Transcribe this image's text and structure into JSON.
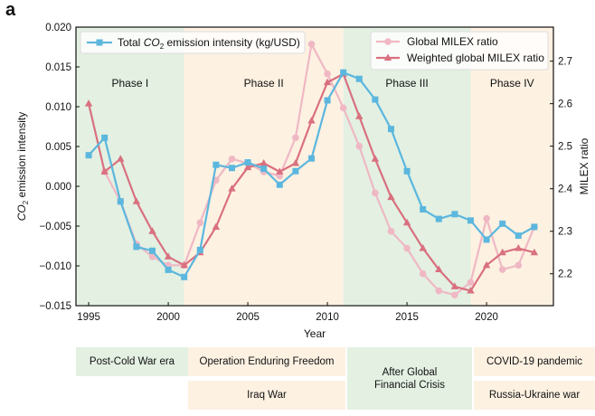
{
  "panel_label": "a",
  "chart_data": {
    "type": "line",
    "x": [
      1995,
      1996,
      1997,
      1998,
      1999,
      2000,
      2001,
      2002,
      2003,
      2004,
      2005,
      2006,
      2007,
      2008,
      2009,
      2010,
      2011,
      2012,
      2013,
      2014,
      2015,
      2016,
      2017,
      2018,
      2019,
      2020,
      2021,
      2022,
      2023
    ],
    "xlabel": "Year",
    "xlim": [
      1994.2,
      2024.2
    ],
    "xticks": [
      1995,
      2000,
      2005,
      2010,
      2015,
      2020
    ],
    "left_axis": {
      "label_prefix": "CO",
      "label_sub": "2",
      "label_suffix": " emission intensity",
      "ylim": [
        -0.015,
        0.02
      ],
      "ticks": [
        -0.015,
        -0.01,
        -0.005,
        0.0,
        0.005,
        0.01,
        0.015,
        0.02
      ],
      "tick_labels": [
        "−0.015",
        "−0.010",
        "−0.005",
        "0.000",
        "0.005",
        "0.010",
        "0.015",
        "0.020"
      ]
    },
    "right_axis": {
      "label": "MILEX ratio",
      "ylim": [
        2.125,
        2.78
      ],
      "ticks": [
        2.2,
        2.3,
        2.4,
        2.5,
        2.6,
        2.7
      ],
      "tick_labels": [
        "2.2",
        "2.3",
        "2.4",
        "2.5",
        "2.6",
        "2.7"
      ]
    },
    "series": [
      {
        "name": "Total CO2 emission intensity (kg/USD)",
        "legend_prefix": "Total ",
        "legend_italic": "CO",
        "legend_sub": "2",
        "legend_suffix": " emission intensity (kg/USD)",
        "axis": "left",
        "marker": "square",
        "color": "#5bb7de",
        "start_year": 1995,
        "values": [
          0.0039,
          0.0061,
          -0.0019,
          -0.0076,
          -0.0081,
          -0.0105,
          -0.0114,
          -0.008,
          0.0027,
          0.0023,
          0.003,
          0.0022,
          0.0002,
          0.0019,
          0.0035,
          0.0108,
          0.0143,
          0.0135,
          0.0109,
          0.0072,
          0.0019,
          -0.0029,
          -0.0041,
          -0.0035,
          -0.0043,
          -0.0067,
          -0.0047,
          -0.0062,
          -0.0051
        ]
      },
      {
        "name": "Global MILEX ratio",
        "axis": "right",
        "marker": "circle",
        "color": "#efb8c4",
        "start_year": 1996,
        "values": [
          2.44,
          2.37,
          2.27,
          2.24,
          2.22,
          2.22,
          2.32,
          2.42,
          2.47,
          2.46,
          2.44,
          2.43,
          2.52,
          2.74,
          2.67,
          2.59,
          2.5,
          2.39,
          2.3,
          2.26,
          2.2,
          2.16,
          2.15,
          2.18,
          2.33,
          2.21,
          2.22,
          2.31
        ]
      },
      {
        "name": "Weighted global MILEX ratio",
        "axis": "right",
        "marker": "triangle",
        "color": "#d9707f",
        "start_year": 1995,
        "values": [
          2.6,
          2.44,
          2.47,
          2.37,
          2.3,
          2.24,
          2.22,
          2.25,
          2.31,
          2.4,
          2.45,
          2.46,
          2.44,
          2.46,
          2.56,
          2.65,
          2.67,
          2.57,
          2.47,
          2.38,
          2.32,
          2.26,
          2.21,
          2.17,
          2.16,
          2.22,
          2.25,
          2.26,
          2.25
        ]
      }
    ],
    "phases": [
      {
        "label": "Phase I",
        "start": 1994.2,
        "end": 2001,
        "color": "#e3f0e2"
      },
      {
        "label": "Phase II",
        "start": 2001,
        "end": 2011,
        "color": "#fdf1e2"
      },
      {
        "label": "Phase III",
        "start": 2011,
        "end": 2019,
        "color": "#e3f0e2"
      },
      {
        "label": "Phase IV",
        "start": 2019,
        "end": 2024.2,
        "color": "#fdf1e2"
      }
    ],
    "legend_left_placement": "top-left",
    "legend_right_placement": "top-right"
  },
  "events": [
    {
      "label": "Post-Cold War era",
      "row": "top",
      "phase": 0,
      "color": "green"
    },
    {
      "label": "Operation Enduring Freedom",
      "row": "top",
      "phase": 1,
      "color": "orange"
    },
    {
      "label": "Iraq War",
      "row": "bottom",
      "phase": 1,
      "color": "orange"
    },
    {
      "label": "After Global\nFinancial Crisis",
      "row": "both",
      "phase": 2,
      "color": "green"
    },
    {
      "label": "COVID-19 pandemic",
      "row": "top",
      "phase": 3,
      "color": "orange"
    },
    {
      "label": "Russia-Ukraine war",
      "row": "bottom",
      "phase": 3,
      "color": "orange"
    }
  ]
}
